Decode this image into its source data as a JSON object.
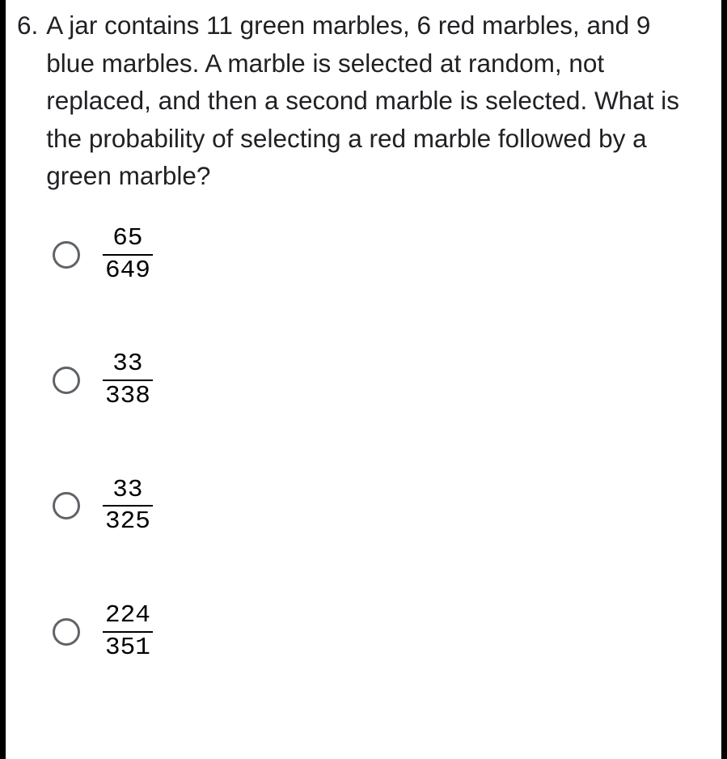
{
  "question": {
    "number": "6.",
    "text": "A jar contains 11 green marbles, 6 red marbles, and 9 blue marbles. A marble is selected at random, not replaced, and then a second marble is selected. What is the probability of selecting a red marble followed by a green marble?"
  },
  "options": [
    {
      "numerator": "65",
      "denominator": "649"
    },
    {
      "numerator": "33",
      "denominator": "338"
    },
    {
      "numerator": "33",
      "denominator": "325"
    },
    {
      "numerator": "224",
      "denominator": "351"
    }
  ],
  "style": {
    "background_color": "#000000",
    "panel_background": "#ffffff",
    "text_color": "#202124",
    "radio_border_color": "#5f6368",
    "fraction_color": "#000000",
    "question_fontsize": 31.5,
    "fraction_fontsize": 31
  }
}
